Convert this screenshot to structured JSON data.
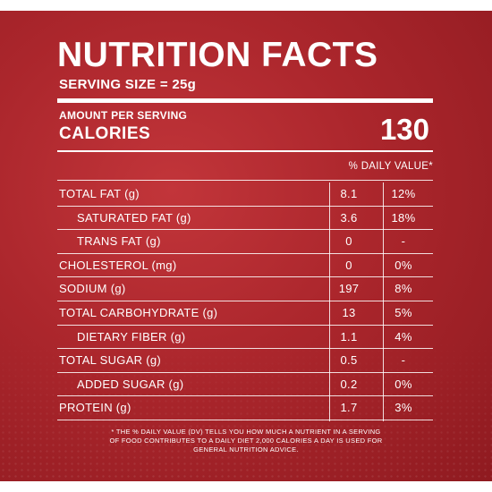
{
  "label": {
    "title": "NUTRITION FACTS",
    "serving_size": "SERVING SIZE = 25g",
    "amount_per_serving": "AMOUNT PER SERVING",
    "calories_label": "CALORIES",
    "calories_value": "130",
    "daily_value_header": "% DAILY VALUE*",
    "rows": [
      {
        "label": "TOTAL FAT (g)",
        "value": "8.1",
        "dv": "12%",
        "sub": false
      },
      {
        "label": "SATURATED FAT (g)",
        "value": "3.6",
        "dv": "18%",
        "sub": true
      },
      {
        "label": "TRANS FAT (g)",
        "value": "0",
        "dv": "-",
        "sub": true
      },
      {
        "label": "CHOLESTEROL (mg)",
        "value": "0",
        "dv": "0%",
        "sub": false
      },
      {
        "label": "SODIUM (g)",
        "value": "197",
        "dv": "8%",
        "sub": false
      },
      {
        "label": "TOTAL CARBOHYDRATE (g)",
        "value": "13",
        "dv": "5%",
        "sub": false
      },
      {
        "label": "DIETARY FIBER (g)",
        "value": "1.1",
        "dv": "4%",
        "sub": true
      },
      {
        "label": "TOTAL SUGAR (g)",
        "value": "0.5",
        "dv": "-",
        "sub": false
      },
      {
        "label": "ADDED SUGAR (g)",
        "value": "0.2",
        "dv": "0%",
        "sub": true
      },
      {
        "label": "PROTEIN (g)",
        "value": "1.7",
        "dv": "3%",
        "sub": false
      }
    ],
    "footnote": "* THE % DAILY VALUE (DV) TELLS YOU HOW MUCH A NUTRIENT IN A SERVING OF FOOD CONTRIBUTES TO A DAILY DIET 2,000 CALORIES A DAY IS USED FOR GENERAL NUTRITION ADVICE."
  },
  "colors": {
    "background": "#ab262c",
    "text": "#ffffff"
  }
}
